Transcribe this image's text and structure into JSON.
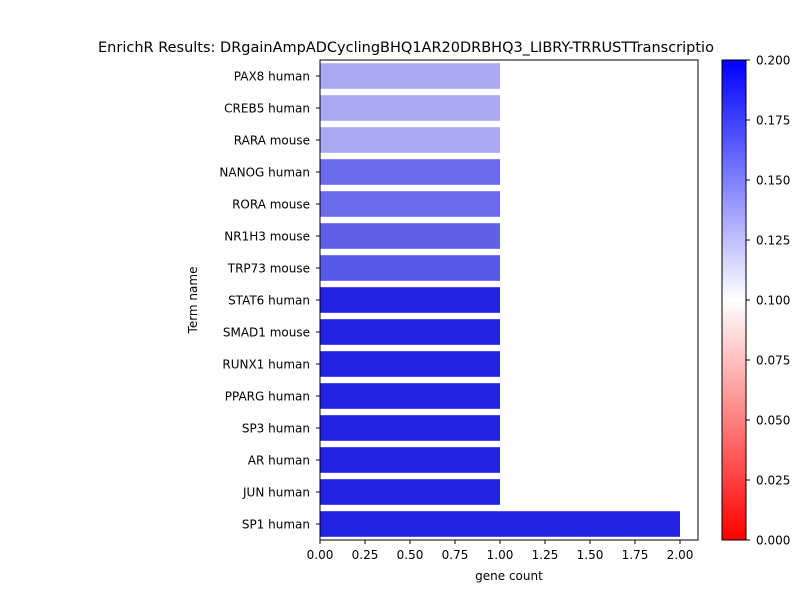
{
  "chart_data": {
    "type": "bar",
    "orientation": "horizontal",
    "title": "EnrichR Results: DRgainAmpADCyclingBHQ1AR20DRBHQ3_LIBRY-TRRUSTTranscriptio",
    "xlabel": "gene count",
    "ylabel": "Term name",
    "categories": [
      "PAX8 human",
      "CREB5 human",
      "RARA mouse",
      "NANOG human",
      "RORA mouse",
      "NR1H3 mouse",
      "TRP73 mouse",
      "STAT6 human",
      "SMAD1 mouse",
      "RUNX1 human",
      "PPARG human",
      "SP3 human",
      "AR human",
      "JUN human",
      "SP1 human"
    ],
    "values": [
      1,
      1,
      1,
      1,
      1,
      1,
      1,
      1,
      1,
      1,
      1,
      1,
      1,
      1,
      2
    ],
    "bar_colors": [
      "#aaaaf4",
      "#aaaaf4",
      "#aaaaf4",
      "#6c6ceb",
      "#6c6ceb",
      "#5f5fe9",
      "#5858e8",
      "#2222e0",
      "#2222e0",
      "#2222e0",
      "#2222e0",
      "#2222e0",
      "#2222e0",
      "#2222e0",
      "#2222e0"
    ],
    "xlim": [
      0,
      2.1
    ],
    "xticks": [
      "0.00",
      "0.25",
      "0.50",
      "0.75",
      "1.00",
      "1.25",
      "1.50",
      "1.75",
      "2.00"
    ],
    "grid": false,
    "colorbar": {
      "range": [
        0,
        0.2
      ],
      "ticks": [
        "0.000",
        "0.025",
        "0.050",
        "0.075",
        "0.100",
        "0.125",
        "0.150",
        "0.175",
        "0.200"
      ],
      "colormap": [
        "#ff0000",
        "#ffffff",
        "#0000ff"
      ]
    }
  }
}
